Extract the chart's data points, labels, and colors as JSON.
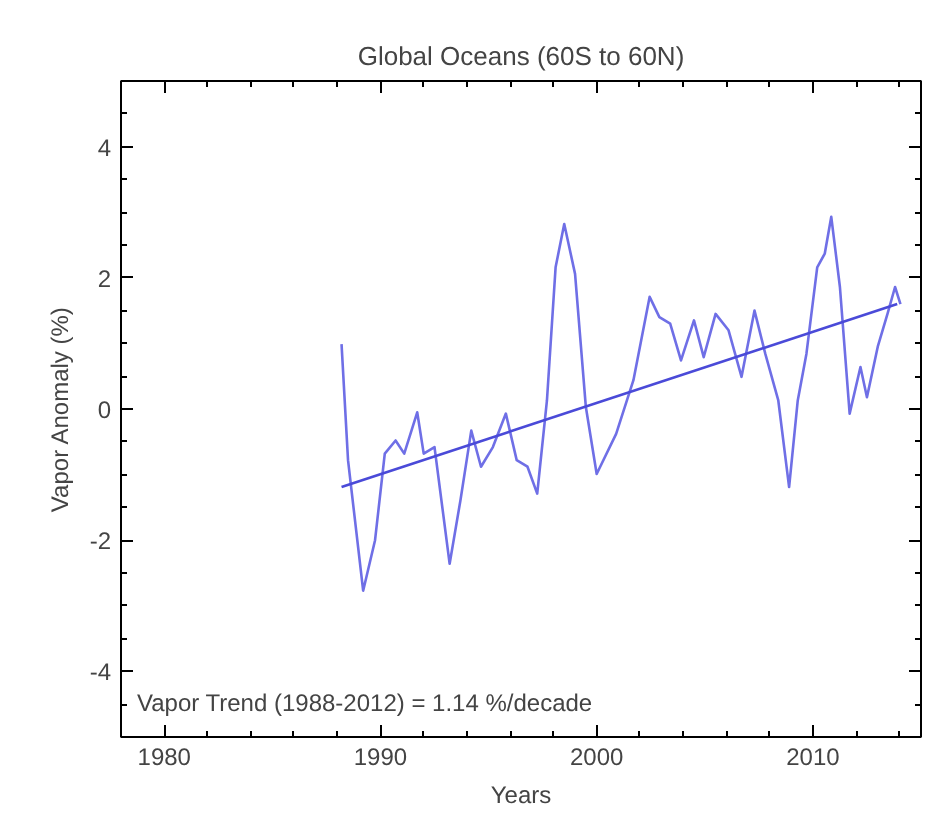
{
  "chart_data": {
    "type": "line",
    "title": "Global Oceans (60S to 60N)",
    "xlabel": "Years",
    "ylabel": "Vapor Anomaly (%)",
    "xlim": [
      1978,
      2015
    ],
    "ylim": [
      -5,
      5
    ],
    "xticks": [
      1980,
      1990,
      2000,
      2010
    ],
    "yticks": [
      -4,
      -2,
      0,
      2,
      4
    ],
    "grid": false,
    "series": [
      {
        "color": "#6f6fe6",
        "x": [
          1988.2,
          1988.5,
          1989.2,
          1989.75,
          1990.2,
          1990.7,
          1991.1,
          1991.7,
          1992.0,
          1992.5,
          1993.2,
          1993.7,
          1994.2,
          1994.65,
          1995.2,
          1995.8,
          1996.3,
          1996.8,
          1997.25,
          1997.7,
          1998.1,
          1998.5,
          1999.0,
          1999.5,
          2000.0,
          2000.9,
          2001.7,
          2002.45,
          2002.9,
          2003.4,
          2003.9,
          2004.5,
          2004.95,
          2005.5,
          2006.1,
          2006.7,
          2007.3,
          2007.8,
          2008.4,
          2008.9,
          2009.3,
          2009.7,
          2010.2,
          2010.55,
          2010.85,
          2011.25,
          2011.7,
          2012.2,
          2012.5,
          2013.0,
          2013.45,
          2013.8,
          2014.05
        ],
        "values": [
          0.99,
          -0.78,
          -2.77,
          -2.0,
          -0.68,
          -0.48,
          -0.68,
          -0.05,
          -0.68,
          -0.58,
          -2.36,
          -1.39,
          -0.33,
          -0.88,
          -0.58,
          -0.07,
          -0.78,
          -0.88,
          -1.29,
          0.13,
          2.16,
          2.82,
          2.06,
          0.03,
          -0.99,
          -0.38,
          0.44,
          1.71,
          1.4,
          1.3,
          0.74,
          1.35,
          0.79,
          1.45,
          1.2,
          0.49,
          1.5,
          0.84,
          0.13,
          -1.19,
          0.13,
          0.84,
          2.16,
          2.37,
          2.93,
          1.86,
          -0.07,
          0.64,
          0.18,
          0.95,
          1.45,
          1.86,
          1.6
        ]
      },
      {
        "type": "line",
        "color": "#4a4ad8",
        "x": [
          1988.2,
          2013.9
        ],
        "values": [
          -1.19,
          1.6
        ]
      }
    ],
    "annotations": [
      "Vapor Trend (1988-2012) =  1.14 %/decade"
    ]
  }
}
